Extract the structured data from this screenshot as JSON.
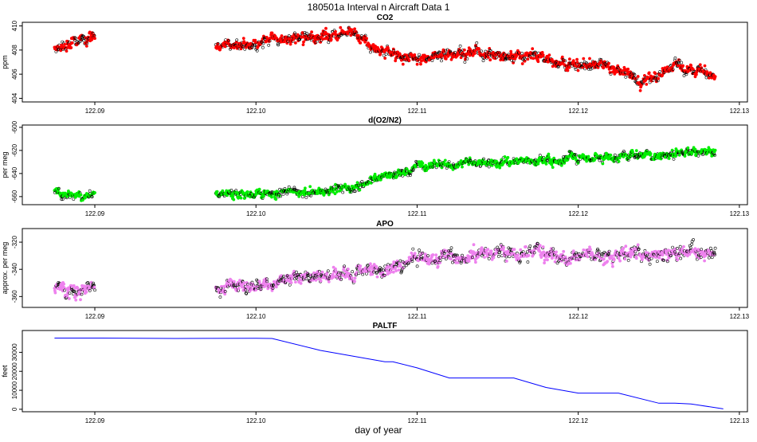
{
  "figure": {
    "title": "180501a   Interval n Aircraft Data 1",
    "xlabel": "day of year"
  },
  "colors": {
    "co2": "#ff0000",
    "o2n2": "#00ee00",
    "apo": "#ee82ee",
    "paltf": "#0000ff",
    "outline": "#000000"
  },
  "chart_data": [
    {
      "type": "scatter",
      "title": "CO2",
      "ylabel": "ppm",
      "xlim": [
        122.0855,
        122.1305
      ],
      "ylim": [
        403.7,
        410.3
      ],
      "xticks": [
        122.09,
        122.1,
        122.11,
        122.12,
        122.13
      ],
      "xtick_labels": [
        "122.09",
        "122.10",
        "122.11",
        "122.12",
        "122.13"
      ],
      "yticks": [
        404,
        406,
        408,
        410
      ],
      "ytick_labels": [
        "404",
        "406",
        "408",
        "410"
      ],
      "series": [
        {
          "x": [
            122.0875,
            122.0888,
            122.09,
            122.0975,
            122.1,
            122.103,
            122.1055,
            122.1062,
            122.1075,
            122.11,
            122.1125,
            122.115,
            122.1175,
            122.12,
            122.1225,
            122.1238,
            122.125,
            122.1262,
            122.1285
          ],
          "y": [
            408.1,
            408.6,
            409.0,
            408.4,
            408.5,
            408.9,
            409.4,
            409.0,
            408.0,
            407.2,
            407.8,
            407.6,
            407.5,
            406.8,
            406.6,
            405.1,
            405.9,
            406.8,
            406.0
          ]
        }
      ]
    },
    {
      "type": "scatter",
      "title": "d(O2/N2)",
      "ylabel": "per meg",
      "xlim": [
        122.0855,
        122.1305
      ],
      "ylim": [
        -667,
        -598
      ],
      "xticks": [
        122.09,
        122.1,
        122.11,
        122.12,
        122.13
      ],
      "xtick_labels": [
        "122.09",
        "122.10",
        "122.11",
        "122.12",
        "122.13"
      ],
      "yticks": [
        -660,
        -640,
        -620,
        -600
      ],
      "ytick_labels": [
        "-660",
        "-640",
        "-620",
        "-600"
      ],
      "series": [
        {
          "x": [
            122.0875,
            122.0888,
            122.09,
            122.0975,
            122.1,
            122.103,
            122.106,
            122.108,
            122.11,
            122.113,
            122.116,
            122.12,
            122.124,
            122.127,
            122.1285
          ],
          "y": [
            -656,
            -660,
            -658,
            -658,
            -658,
            -656,
            -652,
            -643,
            -634,
            -631,
            -630,
            -627,
            -624,
            -622,
            -624
          ]
        }
      ]
    },
    {
      "type": "scatter",
      "title": "APO",
      "ylabel": "approx. per meg",
      "xlim": [
        122.0855,
        122.1305
      ],
      "ylim": [
        -368,
        -310
      ],
      "xticks": [
        122.09,
        122.1,
        122.11,
        122.12,
        122.13
      ],
      "xtick_labels": [
        "122.09",
        "122.10",
        "122.11",
        "122.12",
        "122.13"
      ],
      "yticks": [
        -360,
        -340,
        -320
      ],
      "ytick_labels": [
        "-360",
        "-340",
        "-320"
      ],
      "series": [
        {
          "x": [
            122.0875,
            122.0888,
            122.09,
            122.0975,
            122.1,
            122.103,
            122.106,
            122.108,
            122.11,
            122.113,
            122.116,
            122.12,
            122.124,
            122.127,
            122.1285
          ],
          "y": [
            -352,
            -357,
            -352,
            -353,
            -352,
            -346,
            -345,
            -340,
            -332,
            -330,
            -328,
            -331,
            -329,
            -328,
            -327
          ]
        }
      ]
    },
    {
      "type": "line",
      "title": "PALTF",
      "ylabel": "feet",
      "xlim": [
        122.0855,
        122.1305
      ],
      "ylim": [
        -1300,
        41500
      ],
      "xticks": [
        122.09,
        122.1,
        122.11,
        122.12,
        122.13
      ],
      "xtick_labels": [
        "122.09",
        "122.10",
        "122.11",
        "122.12",
        "122.13"
      ],
      "yticks": [
        0,
        10000,
        20000,
        30000
      ],
      "ytick_labels": [
        "0",
        "10000",
        "20000",
        "30000"
      ],
      "series": [
        {
          "x": [
            122.0875,
            122.09,
            122.095,
            122.1,
            122.101,
            122.104,
            122.108,
            122.1085,
            122.11,
            122.112,
            122.114,
            122.116,
            122.118,
            122.12,
            122.121,
            122.1225,
            122.125,
            122.126,
            122.127,
            122.129
          ],
          "y": [
            37500,
            37500,
            37300,
            37400,
            37300,
            31000,
            25000,
            25000,
            21800,
            16500,
            16500,
            16500,
            11500,
            8500,
            8500,
            8500,
            3200,
            3200,
            2800,
            200
          ]
        }
      ]
    }
  ]
}
